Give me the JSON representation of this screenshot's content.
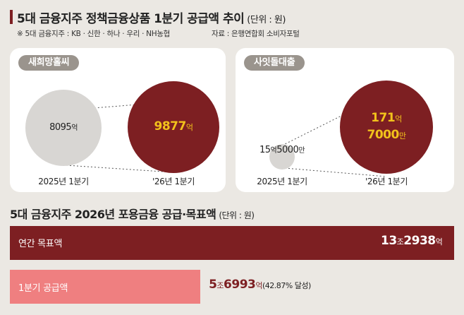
{
  "header": {
    "title": "5대 금융지주 정책금융상품 1분기 공급액 추이",
    "unit": "(단위 : 원)",
    "note": "※ 5대 금융지주 : KB · 신한 · 하나 · 우리 · NH농협",
    "source": "자료 : 은행연합회 소비자포털"
  },
  "section2": {
    "title": "5대 금융지주 2026년 포용금융 공급·목표액",
    "unit": "(단위 : 원)"
  },
  "colors": {
    "maroon": "#7d1f22",
    "grey_circle": "#d8d6d3",
    "pink_bar": "#ef7f80",
    "gold": "#f2c21b"
  },
  "chart_data": [
    {
      "type": "bubble",
      "title": "새희망홀씨",
      "categories": [
        "2025년 1분기",
        "'26년 1분기"
      ],
      "values_eok": [
        8095,
        9877
      ],
      "labels": [
        {
          "num": "8095",
          "unit": "억"
        },
        {
          "num": "9877",
          "unit": "억"
        }
      ]
    },
    {
      "type": "bubble",
      "title": "사잇돌대출",
      "categories": [
        "2025년 1분기",
        "'26년 1분기"
      ],
      "values_eok": [
        15.5,
        171.7
      ],
      "labels": [
        {
          "num1": "15",
          "unit1": "억",
          "num2": "5000",
          "unit2": "만"
        },
        {
          "num1": "171",
          "unit1": "억",
          "num2": "7000",
          "unit2": "만"
        }
      ]
    },
    {
      "type": "bar",
      "orientation": "horizontal",
      "categories": [
        "연간 목표액",
        "1분기 공급액"
      ],
      "values_eok": [
        132938,
        56993
      ],
      "labels": [
        {
          "num1": "13",
          "unit1": "조",
          "num2": "2938",
          "unit2": "억",
          "extra": ""
        },
        {
          "num1": "5",
          "unit1": "조",
          "num2": "6993",
          "unit2": "억",
          "extra": "(42.87% 달성)"
        }
      ]
    }
  ]
}
